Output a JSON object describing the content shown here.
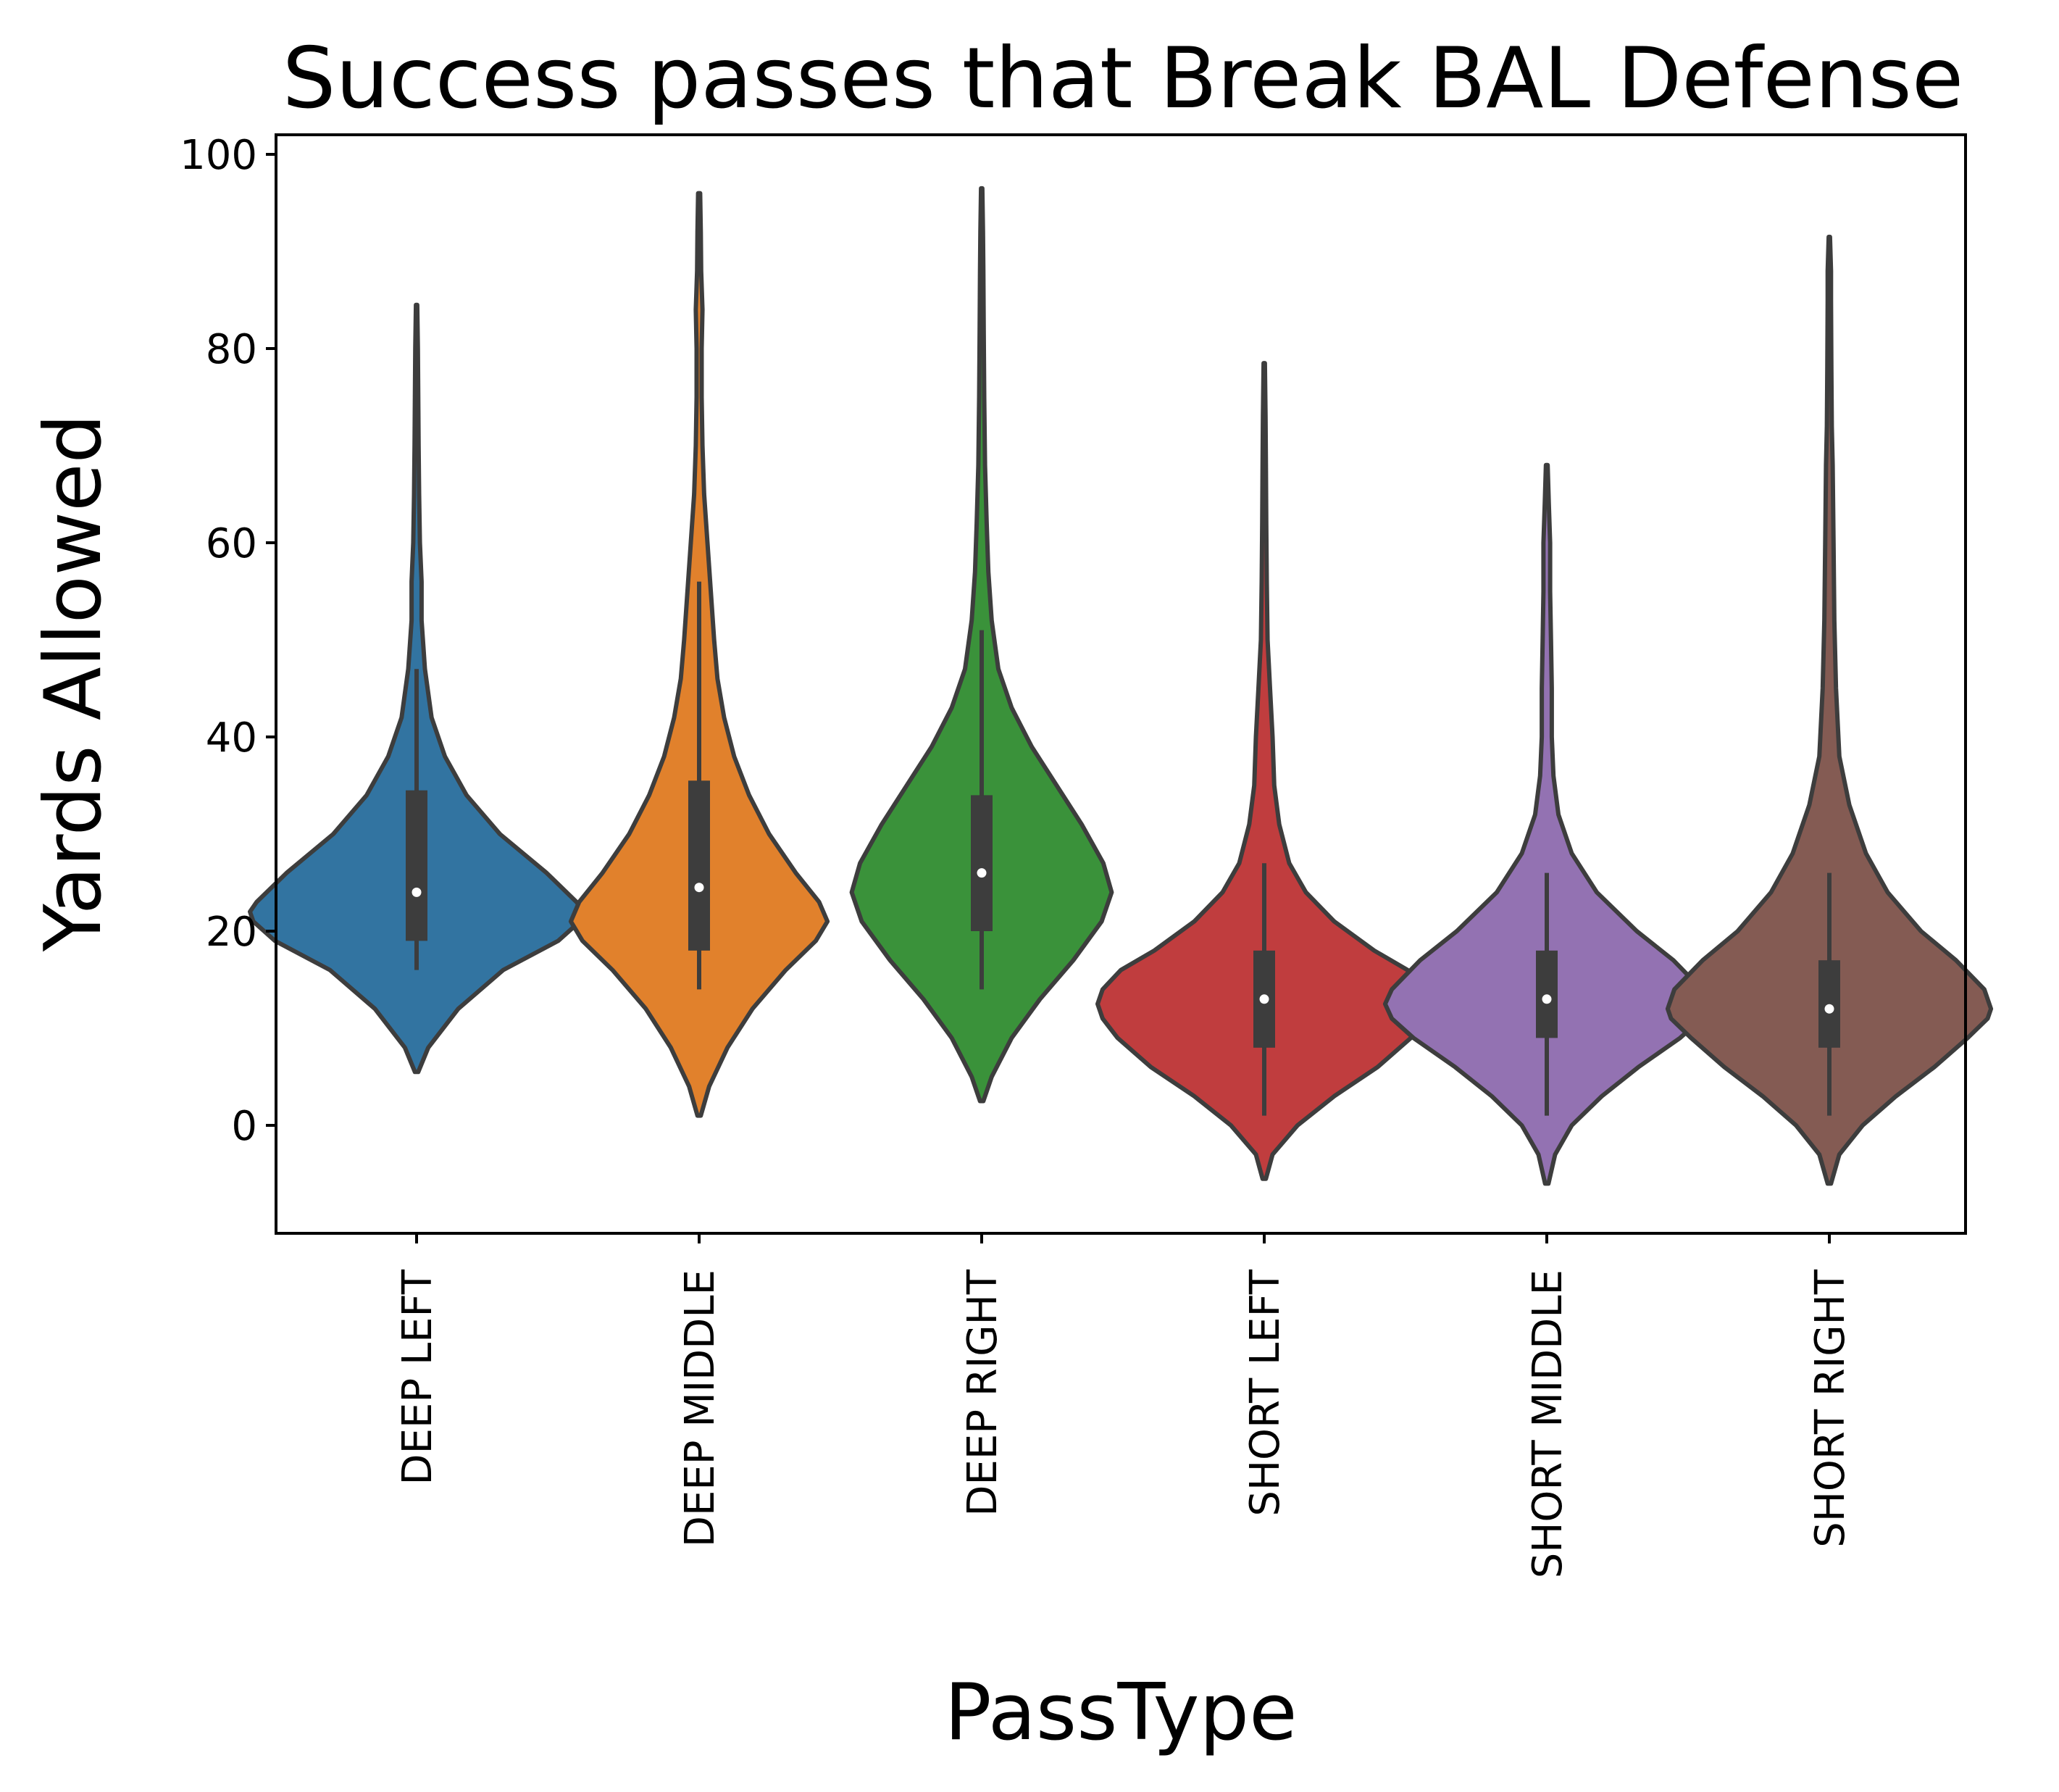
{
  "chart_data": {
    "type": "violin",
    "title": "Success passes that Break BAL Defense",
    "xlabel": "PassType",
    "ylabel": "Yards Allowed",
    "ylim": [
      -11,
      102
    ],
    "yticks": [
      0,
      20,
      40,
      60,
      80,
      100
    ],
    "grid": false,
    "categories": [
      "DEEP LEFT",
      "DEEP MIDDLE",
      "DEEP RIGHT",
      "SHORT LEFT",
      "SHORT MIDDLE",
      "SHORT RIGHT"
    ],
    "series": [
      {
        "category": "DEEP LEFT",
        "color": "#3274a1",
        "min": 16,
        "q1": 19,
        "median": 24,
        "q3": 34.5,
        "max": 47,
        "kde_range": [
          5.5,
          84.5
        ],
        "density": [
          [
            5.5,
            0.01
          ],
          [
            8,
            0.07
          ],
          [
            12,
            0.25
          ],
          [
            16,
            0.52
          ],
          [
            19,
            0.85
          ],
          [
            21,
            0.98
          ],
          [
            22,
            1.0
          ],
          [
            23,
            0.96
          ],
          [
            26,
            0.78
          ],
          [
            30,
            0.5
          ],
          [
            34,
            0.3
          ],
          [
            38,
            0.17
          ],
          [
            42,
            0.09
          ],
          [
            47,
            0.05
          ],
          [
            52,
            0.03
          ],
          [
            56,
            0.03
          ],
          [
            60,
            0.02
          ],
          [
            65,
            0.015
          ],
          [
            70,
            0.012
          ],
          [
            75,
            0.01
          ],
          [
            80,
            0.008
          ],
          [
            84.5,
            0.004
          ]
        ]
      },
      {
        "category": "DEEP MIDDLE",
        "color": "#e1812c",
        "min": 14,
        "q1": 18,
        "median": 24.5,
        "q3": 35.5,
        "max": 56,
        "kde_range": [
          1,
          96
        ],
        "density": [
          [
            1,
            0.01
          ],
          [
            4,
            0.06
          ],
          [
            8,
            0.17
          ],
          [
            12,
            0.32
          ],
          [
            16,
            0.52
          ],
          [
            19,
            0.7
          ],
          [
            21,
            0.77
          ],
          [
            23,
            0.72
          ],
          [
            26,
            0.58
          ],
          [
            30,
            0.42
          ],
          [
            34,
            0.3
          ],
          [
            38,
            0.21
          ],
          [
            42,
            0.15
          ],
          [
            46,
            0.11
          ],
          [
            50,
            0.09
          ],
          [
            55,
            0.07
          ],
          [
            60,
            0.05
          ],
          [
            65,
            0.03
          ],
          [
            70,
            0.02
          ],
          [
            75,
            0.015
          ],
          [
            80,
            0.015
          ],
          [
            84,
            0.02
          ],
          [
            88,
            0.012
          ],
          [
            92,
            0.01
          ],
          [
            96,
            0.006
          ]
        ]
      },
      {
        "category": "DEEP RIGHT",
        "color": "#3a923a",
        "min": 14,
        "q1": 20,
        "median": 26,
        "q3": 34,
        "max": 51,
        "kde_range": [
          2.5,
          96.5
        ],
        "density": [
          [
            2.5,
            0.01
          ],
          [
            5,
            0.06
          ],
          [
            9,
            0.18
          ],
          [
            13,
            0.35
          ],
          [
            17,
            0.55
          ],
          [
            21,
            0.72
          ],
          [
            24,
            0.78
          ],
          [
            27,
            0.73
          ],
          [
            31,
            0.6
          ],
          [
            35,
            0.45
          ],
          [
            39,
            0.3
          ],
          [
            43,
            0.18
          ],
          [
            47,
            0.1
          ],
          [
            52,
            0.06
          ],
          [
            57,
            0.04
          ],
          [
            62,
            0.03
          ],
          [
            68,
            0.02
          ],
          [
            75,
            0.015
          ],
          [
            82,
            0.012
          ],
          [
            88,
            0.01
          ],
          [
            92,
            0.008
          ],
          [
            96.5,
            0.004
          ]
        ]
      },
      {
        "category": "SHORT LEFT",
        "color": "#c03d3e",
        "min": 1,
        "q1": 8,
        "median": 13,
        "q3": 18,
        "max": 27,
        "kde_range": [
          -5.5,
          78.5
        ],
        "density": [
          [
            -5.5,
            0.01
          ],
          [
            -3,
            0.05
          ],
          [
            0,
            0.2
          ],
          [
            3,
            0.42
          ],
          [
            6,
            0.68
          ],
          [
            9,
            0.88
          ],
          [
            11,
            0.97
          ],
          [
            12.5,
            1.0
          ],
          [
            14,
            0.97
          ],
          [
            16,
            0.86
          ],
          [
            18,
            0.66
          ],
          [
            21,
            0.42
          ],
          [
            24,
            0.25
          ],
          [
            27,
            0.15
          ],
          [
            31,
            0.09
          ],
          [
            35,
            0.06
          ],
          [
            40,
            0.05
          ],
          [
            45,
            0.035
          ],
          [
            50,
            0.02
          ],
          [
            56,
            0.015
          ],
          [
            62,
            0.012
          ],
          [
            68,
            0.01
          ],
          [
            73,
            0.008
          ],
          [
            78.5,
            0.004
          ]
        ]
      },
      {
        "category": "SHORT MIDDLE",
        "color": "#9372b2",
        "min": 1,
        "q1": 9,
        "median": 13,
        "q3": 18,
        "max": 26,
        "kde_range": [
          -6,
          68
        ],
        "density": [
          [
            -6,
            0.01
          ],
          [
            -3,
            0.05
          ],
          [
            0,
            0.15
          ],
          [
            3,
            0.33
          ],
          [
            6,
            0.55
          ],
          [
            9,
            0.8
          ],
          [
            11,
            0.93
          ],
          [
            12.5,
            0.97
          ],
          [
            14,
            0.93
          ],
          [
            17,
            0.76
          ],
          [
            20,
            0.54
          ],
          [
            24,
            0.3
          ],
          [
            28,
            0.15
          ],
          [
            32,
            0.07
          ],
          [
            36,
            0.04
          ],
          [
            40,
            0.03
          ],
          [
            45,
            0.03
          ],
          [
            50,
            0.025
          ],
          [
            55,
            0.02
          ],
          [
            60,
            0.02
          ],
          [
            64,
            0.012
          ],
          [
            68,
            0.005
          ]
        ]
      },
      {
        "category": "SHORT RIGHT",
        "color": "#845b53",
        "min": 1,
        "q1": 8,
        "median": 12,
        "q3": 17,
        "max": 26,
        "kde_range": [
          -6,
          91.5
        ],
        "density": [
          [
            -6,
            0.01
          ],
          [
            -3,
            0.06
          ],
          [
            0,
            0.2
          ],
          [
            3,
            0.4
          ],
          [
            6,
            0.63
          ],
          [
            9,
            0.83
          ],
          [
            11,
            0.95
          ],
          [
            12,
            0.97
          ],
          [
            14,
            0.93
          ],
          [
            17,
            0.76
          ],
          [
            20,
            0.55
          ],
          [
            24,
            0.35
          ],
          [
            28,
            0.22
          ],
          [
            33,
            0.12
          ],
          [
            38,
            0.06
          ],
          [
            45,
            0.04
          ],
          [
            52,
            0.03
          ],
          [
            60,
            0.025
          ],
          [
            68,
            0.02
          ],
          [
            72,
            0.015
          ],
          [
            78,
            0.012
          ],
          [
            85,
            0.01
          ],
          [
            88,
            0.01
          ],
          [
            91.5,
            0.004
          ]
        ]
      }
    ]
  }
}
